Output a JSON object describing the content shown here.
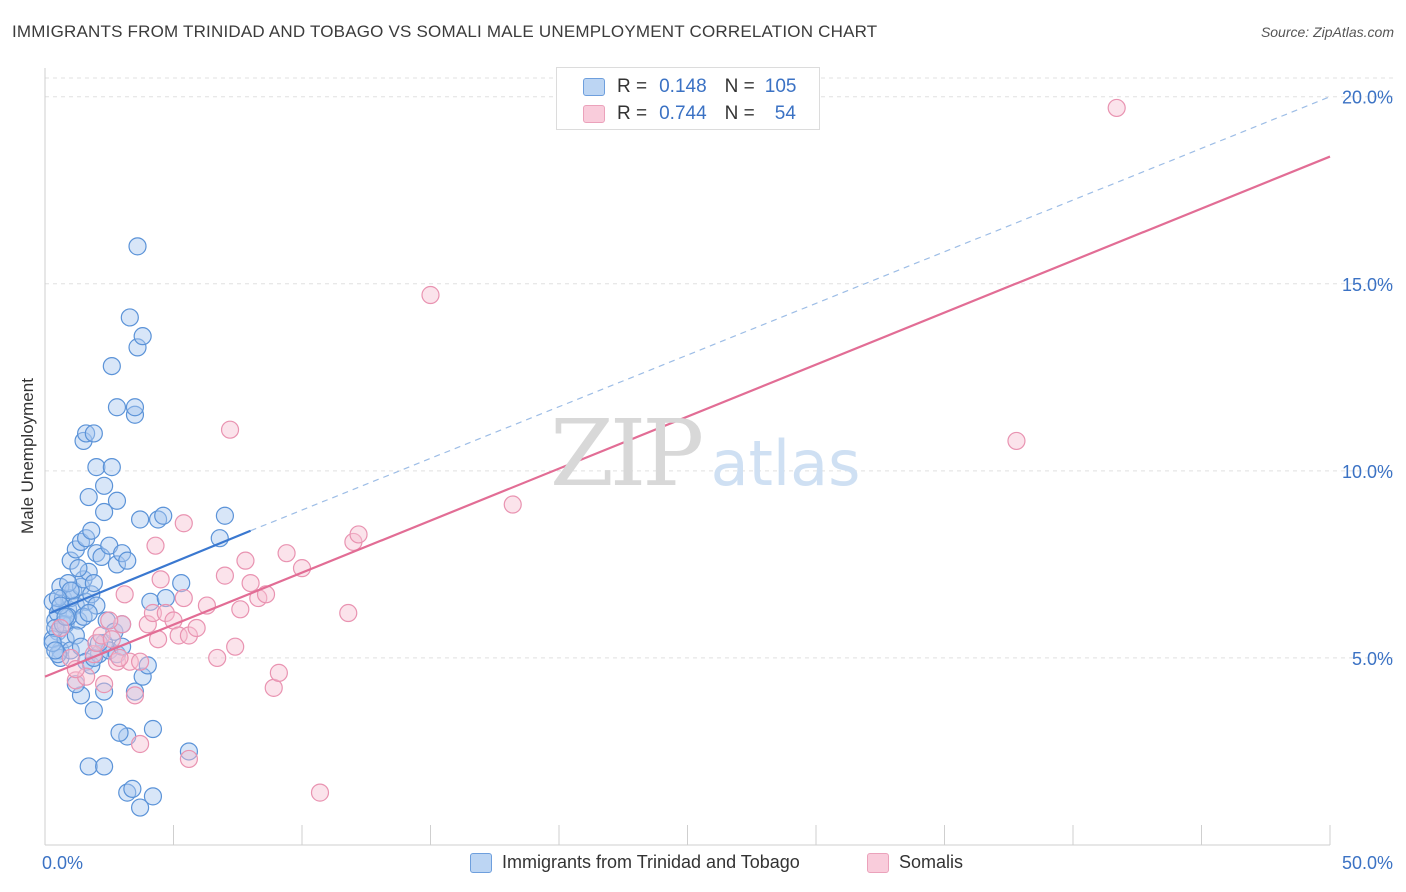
{
  "title": "IMMIGRANTS FROM TRINIDAD AND TOBAGO VS SOMALI MALE UNEMPLOYMENT CORRELATION CHART",
  "source": "Source: ZipAtlas.com",
  "watermark": {
    "zip": "ZIP",
    "atlas": "atlas"
  },
  "legend": {
    "rows": [
      {
        "r_label": "R =",
        "r_value": "0.148",
        "n_label": "N =",
        "n_value": "105"
      },
      {
        "r_label": "R =",
        "r_value": "0.744",
        "n_label": "N =",
        "n_value": "54"
      }
    ]
  },
  "colors": {
    "blue_fill": "#a9c8f0",
    "blue_stroke": "#5b93d8",
    "blue_line": "#3a78d0",
    "pink_fill": "#f6c1d2",
    "pink_stroke": "#e993b1",
    "pink_line": "#e26d95",
    "tick_text": "#3b72c4",
    "grid": "#e0e0e0"
  },
  "chart_data": {
    "type": "scatter",
    "title": "IMMIGRANTS FROM TRINIDAD AND TOBAGO VS SOMALI MALE UNEMPLOYMENT CORRELATION CHART",
    "xlabel": "",
    "ylabel": "Male Unemployment",
    "xlim": [
      0,
      50
    ],
    "ylim": [
      0,
      20
    ],
    "x_tick_labels": [
      "0.0%",
      "50.0%"
    ],
    "y_ticks": [
      5,
      10,
      15,
      20
    ],
    "y_tick_labels": [
      "5.0%",
      "10.0%",
      "15.0%",
      "20.0%"
    ],
    "series": [
      {
        "name": "Immigrants from Trinidad and Tobago",
        "color": "blue",
        "R": 0.148,
        "N": 105,
        "trend": {
          "solid": [
            [
              0.2,
              6.2
            ],
            [
              8.0,
              8.4
            ]
          ],
          "dashed": [
            [
              8.0,
              8.4
            ],
            [
              50.0,
              20.0
            ]
          ]
        },
        "points": [
          [
            0.3,
            6.5
          ],
          [
            0.4,
            6.0
          ],
          [
            0.5,
            5.7
          ],
          [
            0.6,
            5.2
          ],
          [
            0.3,
            5.5
          ],
          [
            0.5,
            6.2
          ],
          [
            0.7,
            6.6
          ],
          [
            0.8,
            5.9
          ],
          [
            0.9,
            6.3
          ],
          [
            1.0,
            6.6
          ],
          [
            1.1,
            6.8
          ],
          [
            1.2,
            6.4
          ],
          [
            1.3,
            6.0
          ],
          [
            1.4,
            6.9
          ],
          [
            1.5,
            7.1
          ],
          [
            1.6,
            6.5
          ],
          [
            1.7,
            7.3
          ],
          [
            1.8,
            6.7
          ],
          [
            1.9,
            7.0
          ],
          [
            2.0,
            6.4
          ],
          [
            0.6,
            5.0
          ],
          [
            0.8,
            5.5
          ],
          [
            1.0,
            5.2
          ],
          [
            1.2,
            5.6
          ],
          [
            1.4,
            5.3
          ],
          [
            1.6,
            4.9
          ],
          [
            1.8,
            4.8
          ],
          [
            2.1,
            5.1
          ],
          [
            2.3,
            5.4
          ],
          [
            2.5,
            5.2
          ],
          [
            0.4,
            5.8
          ],
          [
            0.5,
            5.1
          ],
          [
            0.7,
            5.9
          ],
          [
            0.9,
            6.1
          ],
          [
            1.0,
            7.6
          ],
          [
            1.2,
            7.9
          ],
          [
            1.4,
            8.1
          ],
          [
            1.6,
            8.2
          ],
          [
            1.8,
            8.4
          ],
          [
            2.0,
            7.8
          ],
          [
            2.2,
            7.7
          ],
          [
            2.5,
            8.0
          ],
          [
            2.8,
            7.5
          ],
          [
            3.0,
            7.8
          ],
          [
            3.2,
            7.6
          ],
          [
            1.5,
            10.8
          ],
          [
            1.6,
            11.0
          ],
          [
            1.9,
            11.0
          ],
          [
            2.0,
            10.1
          ],
          [
            2.6,
            10.1
          ],
          [
            2.3,
            9.6
          ],
          [
            2.3,
            8.9
          ],
          [
            2.8,
            9.2
          ],
          [
            1.7,
            9.3
          ],
          [
            3.5,
            11.5
          ],
          [
            3.5,
            11.7
          ],
          [
            2.8,
            11.7
          ],
          [
            2.6,
            12.8
          ],
          [
            3.6,
            13.3
          ],
          [
            3.8,
            13.6
          ],
          [
            3.3,
            14.1
          ],
          [
            3.6,
            16.0
          ],
          [
            3.7,
            8.7
          ],
          [
            4.4,
            8.7
          ],
          [
            4.6,
            8.8
          ],
          [
            4.1,
            6.5
          ],
          [
            4.7,
            6.6
          ],
          [
            5.3,
            7.0
          ],
          [
            7.0,
            8.8
          ],
          [
            6.8,
            8.2
          ],
          [
            2.4,
            6.0
          ],
          [
            2.7,
            5.7
          ],
          [
            3.0,
            5.9
          ],
          [
            2.8,
            5.1
          ],
          [
            3.0,
            5.3
          ],
          [
            3.2,
            2.9
          ],
          [
            3.5,
            4.1
          ],
          [
            3.8,
            4.5
          ],
          [
            4.0,
            4.8
          ],
          [
            4.2,
            3.1
          ],
          [
            2.3,
            4.1
          ],
          [
            1.9,
            3.6
          ],
          [
            1.4,
            4.0
          ],
          [
            1.2,
            4.3
          ],
          [
            1.7,
            2.1
          ],
          [
            2.3,
            2.1
          ],
          [
            3.2,
            1.4
          ],
          [
            3.4,
            1.5
          ],
          [
            3.7,
            1.0
          ],
          [
            4.2,
            1.3
          ],
          [
            5.6,
            2.5
          ],
          [
            2.9,
            3.0
          ],
          [
            1.9,
            5.0
          ],
          [
            2.1,
            5.4
          ],
          [
            0.6,
            6.9
          ],
          [
            0.9,
            7.0
          ],
          [
            1.3,
            7.4
          ],
          [
            1.0,
            6.8
          ],
          [
            0.5,
            6.6
          ],
          [
            0.3,
            5.4
          ],
          [
            0.4,
            5.2
          ],
          [
            0.6,
            6.4
          ],
          [
            0.8,
            6.1
          ],
          [
            1.5,
            6.1
          ],
          [
            1.7,
            6.2
          ]
        ]
      },
      {
        "name": "Somalis",
        "color": "pink",
        "R": 0.744,
        "N": 54,
        "trend": {
          "solid": [
            [
              0.0,
              4.5
            ],
            [
              50.0,
              18.4
            ]
          ]
        },
        "points": [
          [
            0.6,
            5.8
          ],
          [
            1.0,
            5.0
          ],
          [
            1.2,
            4.4
          ],
          [
            1.6,
            4.5
          ],
          [
            1.9,
            5.1
          ],
          [
            2.0,
            5.4
          ],
          [
            2.2,
            5.6
          ],
          [
            2.6,
            5.5
          ],
          [
            2.8,
            4.9
          ],
          [
            3.0,
            5.9
          ],
          [
            3.3,
            4.9
          ],
          [
            3.5,
            4.0
          ],
          [
            3.7,
            4.9
          ],
          [
            4.0,
            5.9
          ],
          [
            4.2,
            6.2
          ],
          [
            4.4,
            5.5
          ],
          [
            4.7,
            6.2
          ],
          [
            5.0,
            6.0
          ],
          [
            5.2,
            5.6
          ],
          [
            5.4,
            6.6
          ],
          [
            5.6,
            5.6
          ],
          [
            5.9,
            5.8
          ],
          [
            6.3,
            6.4
          ],
          [
            6.7,
            5.0
          ],
          [
            7.0,
            7.2
          ],
          [
            7.4,
            5.3
          ],
          [
            7.6,
            6.3
          ],
          [
            7.8,
            7.6
          ],
          [
            8.0,
            7.0
          ],
          [
            8.3,
            6.6
          ],
          [
            8.6,
            6.7
          ],
          [
            8.9,
            4.2
          ],
          [
            9.1,
            4.6
          ],
          [
            9.4,
            7.8
          ],
          [
            10.0,
            7.4
          ],
          [
            11.8,
            6.2
          ],
          [
            12.0,
            8.1
          ],
          [
            12.2,
            8.3
          ],
          [
            4.3,
            8.0
          ],
          [
            4.5,
            7.1
          ],
          [
            5.4,
            8.6
          ],
          [
            7.2,
            11.1
          ],
          [
            15.0,
            14.7
          ],
          [
            18.2,
            9.1
          ],
          [
            37.8,
            10.8
          ],
          [
            41.7,
            19.7
          ],
          [
            10.7,
            1.4
          ],
          [
            5.6,
            2.3
          ],
          [
            3.7,
            2.7
          ],
          [
            1.2,
            4.7
          ],
          [
            2.3,
            4.3
          ],
          [
            2.9,
            5.0
          ],
          [
            2.5,
            6.0
          ],
          [
            3.1,
            6.7
          ]
        ]
      }
    ]
  },
  "bottom_legend": [
    {
      "label": "Immigrants from Trinidad and Tobago"
    },
    {
      "label": "Somalis"
    }
  ]
}
